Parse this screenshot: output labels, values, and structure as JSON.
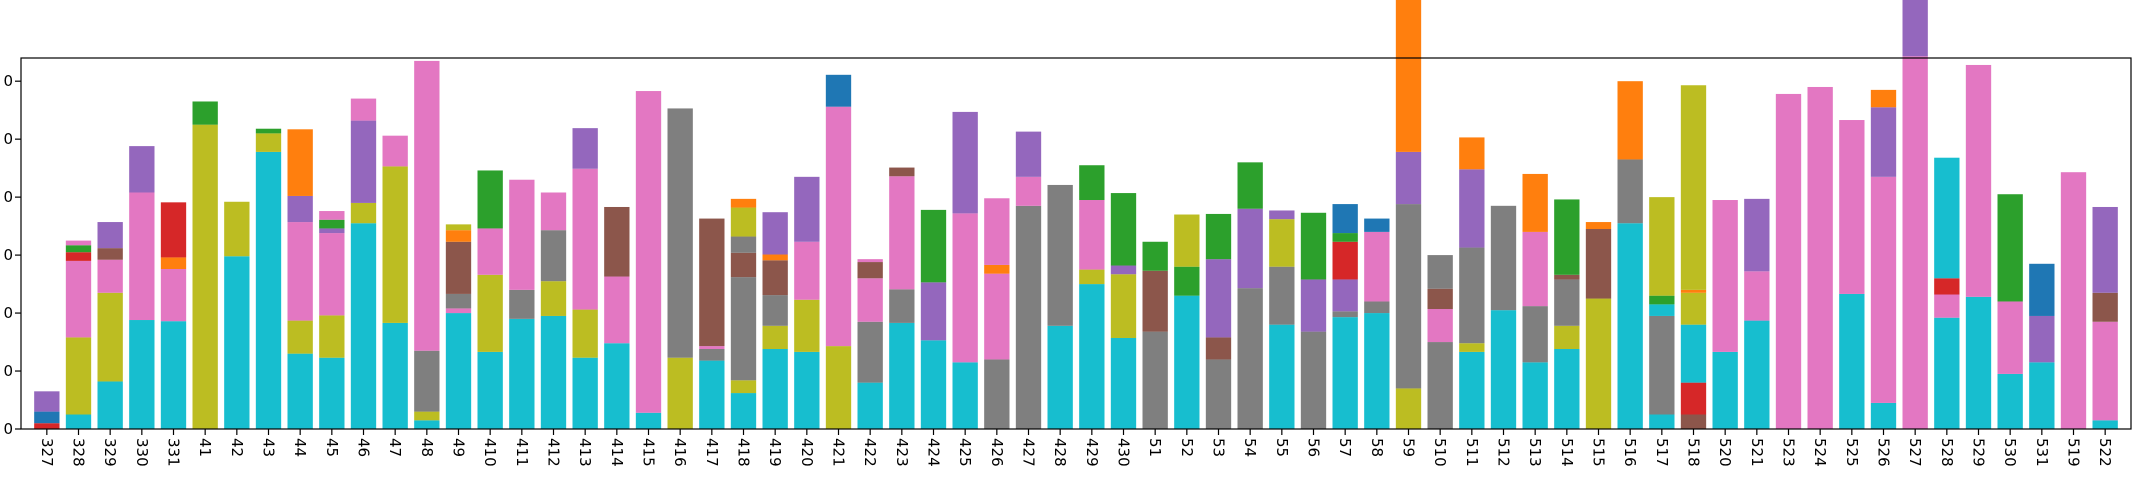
{
  "chart_data": {
    "type": "bar",
    "stacked": true,
    "title": "",
    "xlabel": "",
    "ylabel": "",
    "ylim": [
      0,
      640
    ],
    "grid": false,
    "legend": "none",
    "y_ticks": [
      0,
      100,
      200,
      300,
      400,
      500,
      600
    ],
    "y_tick_labels_partial": [
      "0",
      "0",
      "0",
      "0",
      "0",
      "0",
      "0"
    ],
    "categories": [
      "327",
      "328",
      "329",
      "330",
      "331",
      "41",
      "42",
      "43",
      "44",
      "45",
      "46",
      "47",
      "48",
      "49",
      "410",
      "411",
      "412",
      "413",
      "414",
      "415",
      "416",
      "417",
      "418",
      "419",
      "420",
      "421",
      "422",
      "423",
      "424",
      "425",
      "426",
      "427",
      "428",
      "429",
      "430",
      "51",
      "52",
      "53",
      "54",
      "55",
      "56",
      "57",
      "58",
      "59",
      "510",
      "511",
      "512",
      "513",
      "514",
      "515",
      "516",
      "517",
      "518",
      "520",
      "521",
      "523",
      "524",
      "525",
      "526",
      "527",
      "528",
      "529",
      "530",
      "531",
      "519",
      "522"
    ],
    "colors": {
      "cyan": "#17becf",
      "olive": "#bcbd22",
      "gray": "#7f7f7f",
      "pink": "#e377c2",
      "brown": "#8c564b",
      "purple": "#9467bd",
      "red": "#d62728",
      "green": "#2ca02c",
      "orange": "#ff7f0e",
      "blue": "#1f77b4"
    },
    "stacks": [
      [
        [
          "red",
          10
        ],
        [
          "blue",
          20
        ],
        [
          "purple",
          35
        ]
      ],
      [
        [
          "cyan",
          25
        ],
        [
          "olive",
          133
        ],
        [
          "pink",
          132
        ],
        [
          "red",
          15
        ],
        [
          "green",
          12
        ],
        [
          "pink",
          8
        ]
      ],
      [
        [
          "cyan",
          82
        ],
        [
          "olive",
          153
        ],
        [
          "pink",
          57
        ],
        [
          "brown",
          20
        ],
        [
          "purple",
          45
        ]
      ],
      [
        [
          "cyan",
          188
        ],
        [
          "pink",
          220
        ],
        [
          "purple",
          80
        ]
      ],
      [
        [
          "cyan",
          186
        ],
        [
          "pink",
          90
        ],
        [
          "orange",
          20
        ],
        [
          "red",
          95
        ]
      ],
      [
        [
          "olive",
          525
        ],
        [
          "green",
          40
        ]
      ],
      [
        [
          "cyan",
          298
        ],
        [
          "olive",
          94
        ]
      ],
      [
        [
          "cyan",
          478
        ],
        [
          "olive",
          32
        ],
        [
          "green",
          8
        ]
      ],
      [
        [
          "cyan",
          130
        ],
        [
          "olive",
          57
        ],
        [
          "pink",
          170
        ],
        [
          "purple",
          45
        ],
        [
          "orange",
          115
        ]
      ],
      [
        [
          "cyan",
          123
        ],
        [
          "olive",
          73
        ],
        [
          "pink",
          142
        ],
        [
          "purple",
          8
        ],
        [
          "green",
          15
        ],
        [
          "pink",
          15
        ]
      ],
      [
        [
          "cyan",
          355
        ],
        [
          "olive",
          35
        ],
        [
          "purple",
          142
        ],
        [
          "pink",
          38
        ]
      ],
      [
        [
          "cyan",
          183
        ],
        [
          "olive",
          270
        ],
        [
          "pink",
          53
        ]
      ],
      [
        [
          "cyan",
          15
        ],
        [
          "olive",
          15
        ],
        [
          "gray",
          105
        ],
        [
          "pink",
          500
        ]
      ],
      [
        [
          "cyan",
          200
        ],
        [
          "pink",
          8
        ],
        [
          "gray",
          25
        ],
        [
          "brown",
          90
        ],
        [
          "orange",
          20
        ],
        [
          "olive",
          10
        ]
      ],
      [
        [
          "cyan",
          133
        ],
        [
          "olive",
          133
        ],
        [
          "pink",
          80
        ],
        [
          "green",
          100
        ]
      ],
      [
        [
          "cyan",
          190
        ],
        [
          "gray",
          50
        ],
        [
          "pink",
          190
        ]
      ],
      [
        [
          "cyan",
          195
        ],
        [
          "olive",
          60
        ],
        [
          "gray",
          88
        ],
        [
          "pink",
          65
        ]
      ],
      [
        [
          "cyan",
          123
        ],
        [
          "olive",
          83
        ],
        [
          "pink",
          243
        ],
        [
          "purple",
          70
        ]
      ],
      [
        [
          "cyan",
          148
        ],
        [
          "pink",
          115
        ],
        [
          "brown",
          120
        ]
      ],
      [
        [
          "cyan",
          28
        ],
        [
          "pink",
          555
        ]
      ],
      [
        [
          "olive",
          123
        ],
        [
          "gray",
          430
        ]
      ],
      [
        [
          "cyan",
          118
        ],
        [
          "gray",
          20
        ],
        [
          "pink",
          5
        ],
        [
          "brown",
          220
        ]
      ],
      [
        [
          "cyan",
          62
        ],
        [
          "olive",
          22
        ],
        [
          "gray",
          178
        ],
        [
          "brown",
          42
        ],
        [
          "gray",
          28
        ],
        [
          "olive",
          50
        ],
        [
          "orange",
          15
        ]
      ],
      [
        [
          "cyan",
          138
        ],
        [
          "olive",
          40
        ],
        [
          "gray",
          53
        ],
        [
          "brown",
          60
        ],
        [
          "orange",
          10
        ],
        [
          "purple",
          73
        ]
      ],
      [
        [
          "cyan",
          133
        ],
        [
          "olive",
          90
        ],
        [
          "pink",
          100
        ],
        [
          "purple",
          112
        ]
      ],
      [
        [
          "olive",
          143
        ],
        [
          "pink",
          413
        ],
        [
          "blue",
          55
        ]
      ],
      [
        [
          "cyan",
          80
        ],
        [
          "gray",
          105
        ],
        [
          "pink",
          75
        ],
        [
          "brown",
          28
        ],
        [
          "pink",
          5
        ]
      ],
      [
        [
          "cyan",
          183
        ],
        [
          "gray",
          58
        ],
        [
          "pink",
          195
        ],
        [
          "brown",
          15
        ]
      ],
      [
        [
          "cyan",
          153
        ],
        [
          "purple",
          100
        ],
        [
          "green",
          125
        ]
      ],
      [
        [
          "cyan",
          115
        ],
        [
          "pink",
          257
        ],
        [
          "purple",
          175
        ]
      ],
      [
        [
          "gray",
          120
        ],
        [
          "pink",
          148
        ],
        [
          "orange",
          15
        ],
        [
          "pink",
          115
        ]
      ],
      [
        [
          "gray",
          385
        ],
        [
          "pink",
          50
        ],
        [
          "purple",
          78
        ]
      ],
      [
        [
          "cyan",
          178
        ],
        [
          "gray",
          243
        ]
      ],
      [
        [
          "cyan",
          250
        ],
        [
          "olive",
          25
        ],
        [
          "pink",
          120
        ],
        [
          "green",
          60
        ]
      ],
      [
        [
          "cyan",
          157
        ],
        [
          "olive",
          110
        ],
        [
          "purple",
          15
        ],
        [
          "green",
          125
        ]
      ],
      [
        [
          "gray",
          168
        ],
        [
          "brown",
          105
        ],
        [
          "green",
          50
        ]
      ],
      [
        [
          "cyan",
          230
        ],
        [
          "green",
          50
        ],
        [
          "olive",
          90
        ]
      ],
      [
        [
          "gray",
          120
        ],
        [
          "brown",
          38
        ],
        [
          "purple",
          135
        ],
        [
          "green",
          78
        ]
      ],
      [
        [
          "gray",
          243
        ],
        [
          "purple",
          137
        ],
        [
          "green",
          80
        ]
      ],
      [
        [
          "cyan",
          180
        ],
        [
          "gray",
          100
        ],
        [
          "olive",
          82
        ],
        [
          "purple",
          15
        ]
      ],
      [
        [
          "gray",
          168
        ],
        [
          "purple",
          90
        ],
        [
          "green",
          115
        ]
      ],
      [
        [
          "cyan",
          193
        ],
        [
          "gray",
          10
        ],
        [
          "purple",
          55
        ],
        [
          "red",
          65
        ],
        [
          "green",
          15
        ],
        [
          "blue",
          50
        ]
      ],
      [
        [
          "cyan",
          200
        ],
        [
          "gray",
          20
        ],
        [
          "pink",
          120
        ],
        [
          "blue",
          23
        ]
      ],
      [
        [
          "olive",
          70
        ],
        [
          "gray",
          318
        ],
        [
          "purple",
          90
        ],
        [
          "orange",
          285
        ]
      ],
      [
        [
          "gray",
          150
        ],
        [
          "pink",
          57
        ],
        [
          "brown",
          35
        ],
        [
          "gray",
          58
        ]
      ],
      [
        [
          "cyan",
          133
        ],
        [
          "olive",
          15
        ],
        [
          "gray",
          165
        ],
        [
          "purple",
          135
        ],
        [
          "orange",
          55
        ]
      ],
      [
        [
          "cyan",
          205
        ],
        [
          "gray",
          180
        ]
      ],
      [
        [
          "cyan",
          115
        ],
        [
          "gray",
          97
        ],
        [
          "pink",
          128
        ],
        [
          "orange",
          100
        ]
      ],
      [
        [
          "cyan",
          138
        ],
        [
          "olive",
          40
        ],
        [
          "gray",
          80
        ],
        [
          "brown",
          8
        ],
        [
          "green",
          130
        ]
      ],
      [
        [
          "olive",
          225
        ],
        [
          "brown",
          120
        ],
        [
          "orange",
          12
        ]
      ],
      [
        [
          "cyan",
          355
        ],
        [
          "gray",
          110
        ],
        [
          "orange",
          135
        ]
      ],
      [
        [
          "cyan",
          25
        ],
        [
          "gray",
          170
        ],
        [
          "cyan",
          20
        ],
        [
          "green",
          15
        ],
        [
          "olive",
          170
        ]
      ],
      [
        [
          "brown",
          25
        ],
        [
          "red",
          55
        ],
        [
          "cyan",
          100
        ],
        [
          "olive",
          55
        ],
        [
          "orange",
          5
        ],
        [
          "olive",
          353
        ]
      ],
      [
        [
          "cyan",
          133
        ],
        [
          "pink",
          262
        ]
      ],
      [
        [
          "cyan",
          187
        ],
        [
          "pink",
          85
        ],
        [
          "purple",
          125
        ]
      ],
      [
        [
          "pink",
          578
        ]
      ],
      [
        [
          "pink",
          590
        ]
      ],
      [
        [
          "cyan",
          233
        ],
        [
          "pink",
          300
        ]
      ],
      [
        [
          "cyan",
          45
        ],
        [
          "pink",
          390
        ],
        [
          "purple",
          120
        ],
        [
          "orange",
          30
        ]
      ],
      [
        [
          "pink",
          643
        ],
        [
          "purple",
          195
        ]
      ],
      [
        [
          "cyan",
          192
        ],
        [
          "pink",
          40
        ],
        [
          "red",
          28
        ],
        [
          "cyan",
          208
        ]
      ],
      [
        [
          "cyan",
          228
        ],
        [
          "pink",
          400
        ]
      ],
      [
        [
          "cyan",
          95
        ],
        [
          "pink",
          125
        ],
        [
          "green",
          185
        ]
      ],
      [
        [
          "cyan",
          115
        ],
        [
          "purple",
          80
        ],
        [
          "blue",
          90
        ]
      ],
      [
        [
          "pink",
          443
        ]
      ],
      [
        [
          "cyan",
          15
        ],
        [
          "pink",
          170
        ],
        [
          "brown",
          50
        ],
        [
          "purple",
          148
        ]
      ]
    ]
  }
}
